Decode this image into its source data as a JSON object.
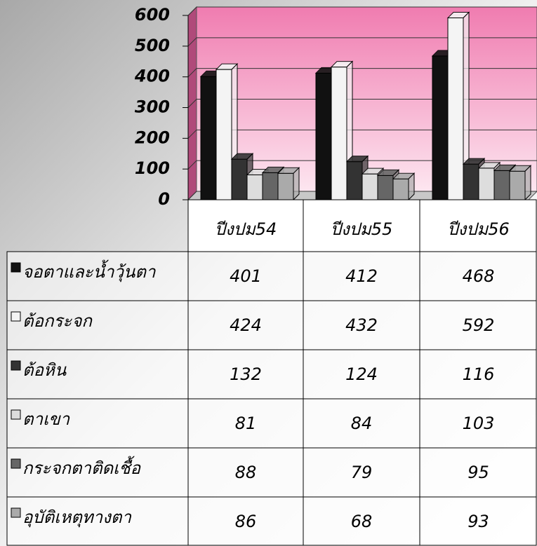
{
  "chart_data": {
    "type": "bar3d",
    "categories": [
      "ปีงปม54",
      "ปีงปม55",
      "ปีงปม56"
    ],
    "series": [
      {
        "name": "จอตาและน้ำวุ้นตา",
        "color": "#111111",
        "values": [
          401,
          412,
          468
        ]
      },
      {
        "name": "ต้อกระจก",
        "color": "#f4f4f4",
        "values": [
          424,
          432,
          592
        ]
      },
      {
        "name": "ต้อหิน",
        "color": "#333333",
        "values": [
          132,
          124,
          116
        ]
      },
      {
        "name": "ตาเขา",
        "color": "#dddddd",
        "values": [
          81,
          84,
          103
        ]
      },
      {
        "name": "กระจกตาติดเชื้อ",
        "color": "#666666",
        "values": [
          88,
          79,
          95
        ]
      },
      {
        "name": "อุบัติเหตุทางตา",
        "color": "#aaaaaa",
        "values": [
          86,
          68,
          93
        ]
      }
    ],
    "ylim": [
      0,
      600
    ],
    "yticks": [
      0,
      100,
      200,
      300,
      400,
      500,
      600
    ],
    "grid": true
  }
}
